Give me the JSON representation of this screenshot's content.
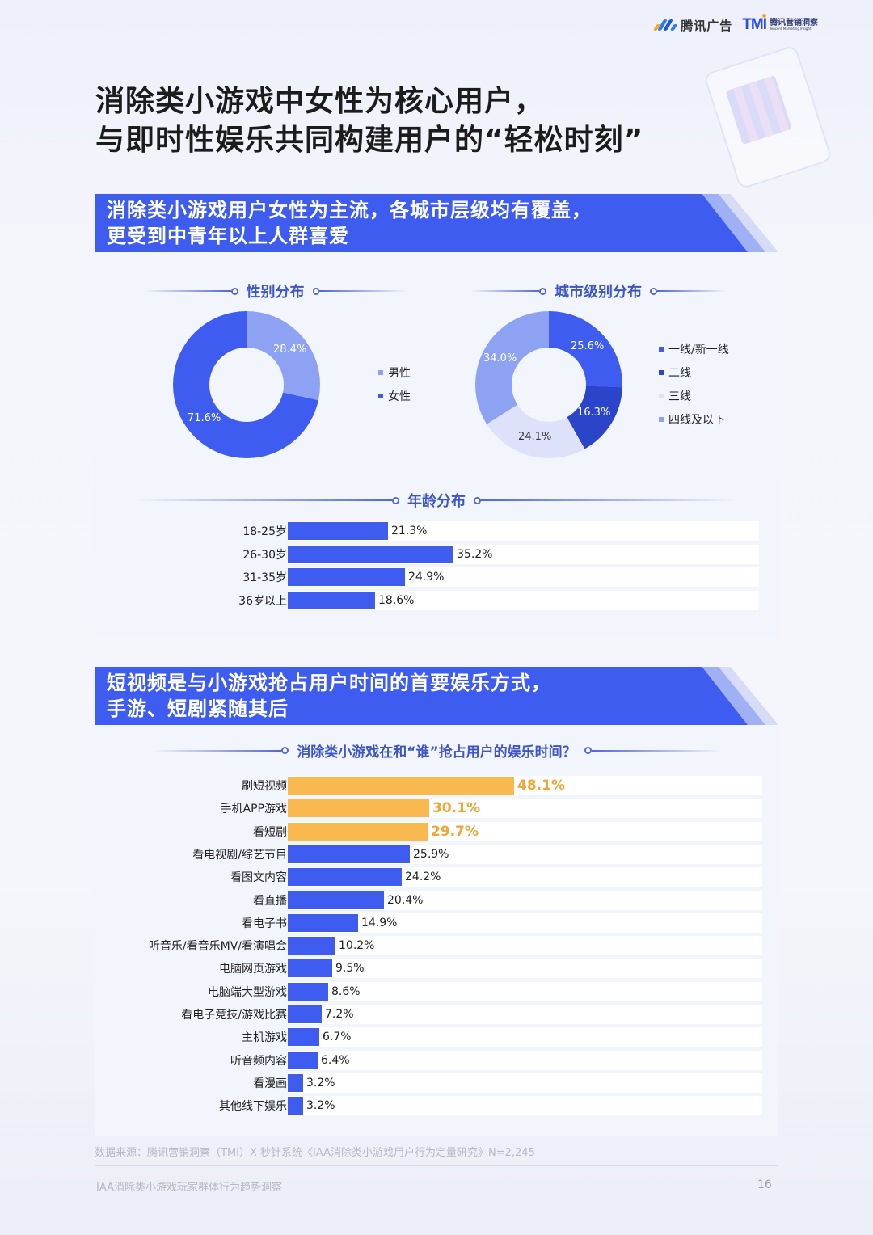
{
  "header": {
    "logo_tencent_ads": "腾讯广告",
    "logo_tmi_mark": "TMI",
    "logo_tmi_cn": "腾讯营销洞察",
    "logo_tmi_en": "Tencent Marketing Insight"
  },
  "title": {
    "line1": "消除类小游戏中女性为核心用户，",
    "line2": "与即时性娱乐共同构建用户的“轻松时刻”"
  },
  "section1": {
    "banner_line1": "消除类小游戏用户女性为主流，各城市层级均有覆盖，",
    "banner_line2": "更受到中青年以上人群喜爱",
    "gender_title": "性别分布",
    "city_title": "城市级别分布",
    "age_title": "年龄分布"
  },
  "section2": {
    "banner_line1": "短视频是与小游戏抢占用户时间的首要娱乐方式，",
    "banner_line2": "手游、短剧紧随其后",
    "chart_title": "消除类小游戏在和“谁”抢占用户的娱乐时间？"
  },
  "colors": {
    "primary_blue": "#3f5cf0",
    "light_blue": "#8ea2f4",
    "dark_blue": "#2a45c9",
    "pale_blue": "#dde2fa",
    "highlight_orange": "#f9b94e",
    "highlight_text": "#f0a534"
  },
  "chart_data": [
    {
      "type": "pie",
      "title": "性别分布",
      "categories": [
        "男性",
        "女性"
      ],
      "values": [
        28.4,
        71.6
      ],
      "labels": [
        "28.4%",
        "71.6%"
      ],
      "colors": [
        "#8ea2f4",
        "#3f5cf0"
      ],
      "legend_position": "right"
    },
    {
      "type": "pie",
      "title": "城市级别分布",
      "categories": [
        "一线/新一线",
        "二线",
        "三线",
        "四线及以下"
      ],
      "values": [
        25.6,
        16.3,
        24.1,
        34.0
      ],
      "labels": [
        "25.6%",
        "16.3%",
        "24.1%",
        "34.0%"
      ],
      "colors": [
        "#3f5cf0",
        "#2a45c9",
        "#dde2fa",
        "#8ea2f4"
      ],
      "legend_position": "right"
    },
    {
      "type": "bar",
      "orientation": "horizontal",
      "title": "年龄分布",
      "categories": [
        "18-25岁",
        "26-30岁",
        "31-35岁",
        "36岁以上"
      ],
      "values": [
        21.3,
        35.2,
        24.9,
        18.6
      ],
      "labels": [
        "21.3%",
        "35.2%",
        "24.9%",
        "18.6%"
      ],
      "xlim": [
        0,
        100
      ]
    },
    {
      "type": "bar",
      "orientation": "horizontal",
      "title": "消除类小游戏在和“谁”抢占用户的娱乐时间？",
      "categories": [
        "刷短视频",
        "手机APP游戏",
        "看短剧",
        "看电视剧/综艺节目",
        "看图文内容",
        "看直播",
        "看电子书",
        "听音乐/看音乐MV/看演唱会",
        "电脑网页游戏",
        "电脑端大型游戏",
        "看电子竞技/游戏比赛",
        "主机游戏",
        "听音频内容",
        "看漫画",
        "其他线下娱乐"
      ],
      "values": [
        48.1,
        30.1,
        29.7,
        25.9,
        24.2,
        20.4,
        14.9,
        10.2,
        9.5,
        8.6,
        7.2,
        6.7,
        6.4,
        3.2,
        3.2
      ],
      "labels": [
        "48.1%",
        "30.1%",
        "29.7%",
        "25.9%",
        "24.2%",
        "20.4%",
        "14.9%",
        "10.2%",
        "9.5%",
        "8.6%",
        "7.2%",
        "6.7%",
        "6.4%",
        "3.2%",
        "3.2%"
      ],
      "highlighted": [
        true,
        true,
        true,
        false,
        false,
        false,
        false,
        false,
        false,
        false,
        false,
        false,
        false,
        false,
        false
      ],
      "xlim": [
        0,
        100
      ]
    }
  ],
  "footer": {
    "source": "数据来源：腾讯营销洞察（TMI）X 秒针系统《IAA消除类小游戏用户行为定量研究》N=2,245",
    "report_name": "IAA消除类小游戏玩家群体行为趋势洞察",
    "page_number": "16"
  }
}
